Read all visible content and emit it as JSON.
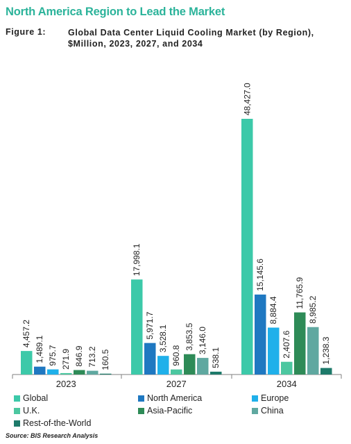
{
  "header": {
    "headline": "North America Region to Lead the Market",
    "figure_label": "Figure 1:",
    "figure_title": "Global Data Center Liquid Cooling Market (by Region), $Million, 2023, 2027, and 2034"
  },
  "source": "Source: BIS Research Analysis",
  "chart_data": {
    "type": "bar",
    "title": "Global Data Center Liquid Cooling Market (by Region), $Million, 2023, 2027, and 2034",
    "xlabel": "",
    "ylabel": "",
    "ylim": [
      0,
      52000
    ],
    "grid": false,
    "legend_position": "bottom",
    "categories": [
      "2023",
      "2027",
      "2034"
    ],
    "series": [
      {
        "name": "Global",
        "color": "#3cc9a9",
        "values": [
          4457.2,
          17998.1,
          48427.0
        ],
        "labels": [
          "4,457.2",
          "17,998.1",
          "48,427.0"
        ]
      },
      {
        "name": "North America",
        "color": "#1f78c1",
        "values": [
          1489.1,
          5971.7,
          15145.6
        ],
        "labels": [
          "1,489.1",
          "5,971.7",
          "15,145.6"
        ]
      },
      {
        "name": "Europe",
        "color": "#1fb0ea",
        "values": [
          975.7,
          3528.1,
          8884.4
        ],
        "labels": [
          "975.7",
          "3,528.1",
          "8,884.4"
        ]
      },
      {
        "name": "U.K.",
        "color": "#4cc7a0",
        "values": [
          271.9,
          960.8,
          2407.6
        ],
        "labels": [
          "271.9",
          "960.8",
          "2,407.6"
        ]
      },
      {
        "name": "Asia-Pacific",
        "color": "#2e8b57",
        "values": [
          846.9,
          3853.5,
          11765.9
        ],
        "labels": [
          "846.9",
          "3,853.5",
          "11,765.9"
        ]
      },
      {
        "name": "China",
        "color": "#5fa8a0",
        "values": [
          713.2,
          3146.0,
          8985.2
        ],
        "labels": [
          "713.2",
          "3,146.0",
          "8,985.2"
        ]
      },
      {
        "name": "Rest-of-the-World",
        "color": "#1d7a6a",
        "values": [
          160.5,
          538.1,
          1238.3
        ],
        "labels": [
          "160.5",
          "538.1",
          "1,238.3"
        ]
      }
    ]
  }
}
